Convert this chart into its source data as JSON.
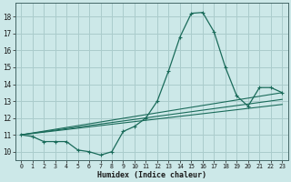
{
  "xlabel": "Humidex (Indice chaleur)",
  "bg_color": "#cce8e8",
  "grid_color": "#aacccc",
  "line_color": "#1a6b5a",
  "xlim": [
    -0.5,
    23.5
  ],
  "ylim": [
    9.5,
    18.8
  ],
  "xticks": [
    0,
    1,
    2,
    3,
    4,
    5,
    6,
    7,
    8,
    9,
    10,
    11,
    12,
    13,
    14,
    15,
    16,
    17,
    18,
    19,
    20,
    21,
    22,
    23
  ],
  "yticks": [
    10,
    11,
    12,
    13,
    14,
    15,
    16,
    17,
    18
  ],
  "main_x": [
    0,
    1,
    2,
    3,
    4,
    5,
    6,
    7,
    8,
    9,
    10,
    11,
    12,
    13,
    14,
    15,
    16,
    17,
    18,
    19,
    20,
    21,
    22,
    23
  ],
  "main_y": [
    11.0,
    10.9,
    10.6,
    10.6,
    10.6,
    10.1,
    10.0,
    9.8,
    10.0,
    11.2,
    11.5,
    12.0,
    13.0,
    14.8,
    16.8,
    18.2,
    18.25,
    17.1,
    15.0,
    13.3,
    12.7,
    13.8,
    13.8,
    13.5
  ],
  "line1_x": [
    0,
    23
  ],
  "line1_y": [
    11.0,
    13.5
  ],
  "line2_x": [
    0,
    23
  ],
  "line2_y": [
    11.0,
    12.8
  ],
  "line3_x": [
    0,
    23
  ],
  "line3_y": [
    11.0,
    13.1
  ]
}
